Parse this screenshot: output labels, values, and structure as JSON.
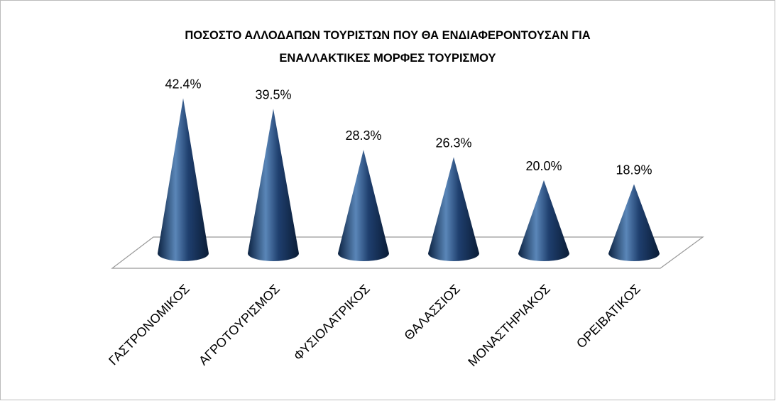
{
  "chart_data": {
    "type": "cone",
    "title": "ΠΟΣΟΣΤΟ ΑΛΛΟΔΑΠΩΝ ΤΟΥΡΙΣΤΩΝ ΠΟΥ ΘΑ ΕΝΔΙΑΦΕΡΟΝΤΟΥΣΑΝ ΓΙΑ ΕΝΑΛΛΑΚΤΙΚΕΣ ΜΟΡΦΕΣ ΤΟΥΡΙΣΜΟΥ",
    "categories": [
      "ΓΑΣΤΡΟΝΟΜΙΚΟΣ",
      "ΑΓΡΟΤΟΥΡΙΣΜΟΣ",
      "ΦΥΣΙΟΛΑΤΡΙΚΟΣ",
      "ΘΑΛΑΣΣΙΟΣ",
      "ΜΟΝΑΣΤΗΡΙΑΚΟΣ",
      "ΟΡΕΙΒΑΤΙΚΟΣ"
    ],
    "values": [
      42.4,
      39.5,
      28.3,
      26.3,
      20.0,
      18.9
    ],
    "value_labels": [
      "42.4%",
      "39.5%",
      "28.3%",
      "26.3%",
      "20.0%",
      "18.9%"
    ],
    "color": "#1f3f6e",
    "ylim": [
      0,
      45
    ]
  }
}
